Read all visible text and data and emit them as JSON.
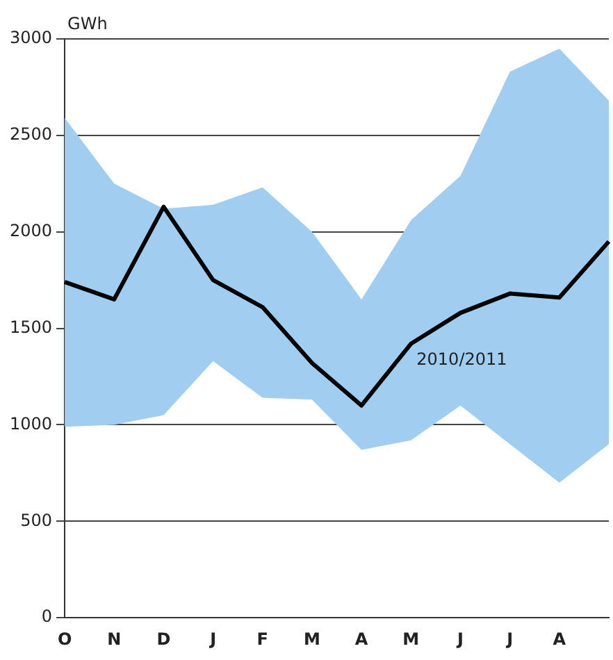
{
  "chart_data": {
    "type": "line",
    "ylabel": "GWh",
    "categories": [
      "O",
      "N",
      "D",
      "J",
      "F",
      "M",
      "A",
      "M",
      "J",
      "J",
      "A",
      null
    ],
    "series": [
      {
        "name": "2010/2011",
        "color": "#000000",
        "values": [
          1740,
          1650,
          2130,
          1750,
          1610,
          1320,
          1100,
          1420,
          1580,
          1680,
          1660,
          1950
        ],
        "lower": [
          990,
          1000,
          1050,
          1330,
          1140,
          1130,
          870,
          920,
          1100,
          900,
          700,
          900
        ],
        "upper": [
          2590,
          2250,
          2120,
          2140,
          2230,
          2000,
          1650,
          2060,
          2290,
          2830,
          2950,
          2680
        ]
      }
    ],
    "ylim": [
      0,
      3000
    ],
    "yticks": [
      0,
      500,
      1000,
      1500,
      2000,
      2500,
      3000
    ],
    "grid": "y",
    "legend": false,
    "marker": "none",
    "line_style": "solid"
  }
}
